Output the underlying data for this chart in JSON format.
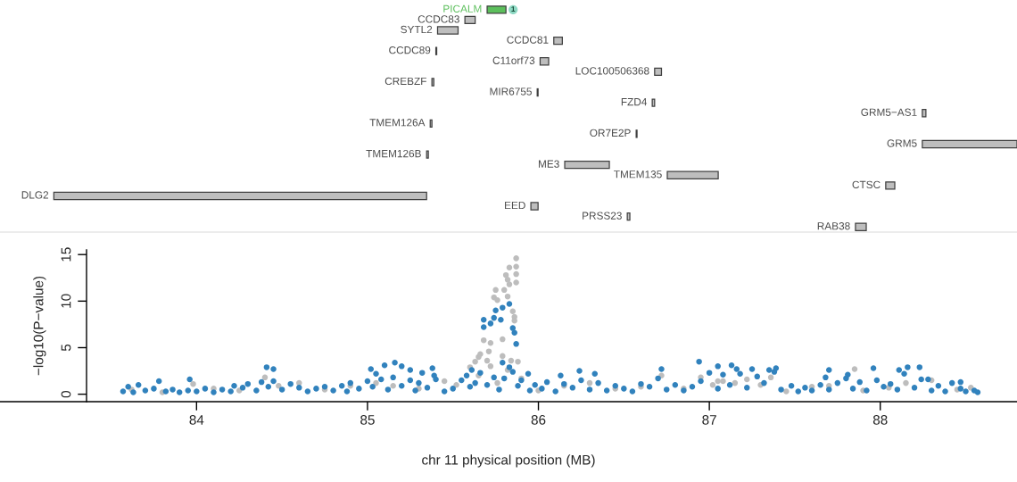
{
  "chart_data": [
    {
      "type": "bar",
      "orientation": "horizontal",
      "xlim": [
        82.85,
        88.8
      ],
      "tick_labels": false,
      "annotations": [
        "1"
      ],
      "categories": [
        "PICALM",
        "CCDC83",
        "SYTL2",
        "CCDC81",
        "CCDC89",
        "C11orf73",
        "LOC100506368",
        "CREBZF",
        "MIR6755",
        "FZD4",
        "GRM5−AS1",
        "TMEM126A",
        "OR7E2P",
        "GRM5",
        "TMEM126B",
        "ME3",
        "TMEM135",
        "CTSC",
        "DLG2",
        "EED",
        "PRSS23",
        "RAB38"
      ],
      "colors": [
        "#5cbf5c",
        "#bebebe",
        "#bebebe",
        "#bebebe",
        "#bebebe",
        "#bebebe",
        "#bebebe",
        "#bebebe",
        "#bebebe",
        "#bebebe",
        "#bebebe",
        "#bebebe",
        "#bebebe",
        "#bebebe",
        "#bebebe",
        "#bebebe",
        "#bebebe",
        "#bebebe",
        "#bebebe",
        "#bebebe",
        "#bebebe",
        "#bebebe"
      ],
      "base": [
        85.7,
        85.57,
        85.41,
        86.09,
        85.4,
        86.01,
        86.68,
        85.377,
        85.993,
        86.666,
        88.246,
        85.367,
        86.572,
        88.246,
        85.346,
        86.154,
        86.754,
        88.032,
        83.165,
        85.956,
        86.52,
        87.855
      ],
      "values": [
        0.11,
        0.06,
        0.12,
        0.05,
        0.005,
        0.05,
        0.04,
        0.011,
        0.005,
        0.014,
        0.021,
        0.01,
        0.005,
        0.554,
        0.01,
        0.261,
        0.298,
        0.053,
        2.181,
        0.042,
        0.015,
        0.063
      ]
    },
    {
      "type": "scatter",
      "xlabel": "chr 11 physical position (MB)",
      "ylabel": "−log10(P−value)",
      "xlim": [
        82.85,
        88.8
      ],
      "ylim": [
        -0.8,
        15.5
      ],
      "xticks": [
        84,
        85,
        86,
        87,
        88
      ],
      "yticks": [
        0,
        5,
        10,
        15
      ],
      "marker": "circle",
      "series": [
        {
          "color": "#bdbdbd",
          "x": [
            83.62,
            83.8,
            83.98,
            84.1,
            84.25,
            84.4,
            84.48,
            84.6,
            84.75,
            84.9,
            85.05,
            85.15,
            85.3,
            85.45,
            85.52,
            85.6,
            85.65,
            85.72,
            85.76,
            85.82,
            85.9,
            86.0,
            86.15,
            86.3,
            86.45,
            86.6,
            86.72,
            86.85,
            86.95,
            87.02,
            87.08,
            87.15,
            87.22,
            87.3,
            87.36,
            87.45,
            87.6,
            87.7,
            87.85,
            87.9,
            88.05,
            88.15,
            88.3,
            88.45,
            88.53,
            87.05,
            85.65,
            85.87,
            85.83,
            85.87,
            85.81,
            85.87,
            85.82,
            85.83,
            85.87,
            85.75,
            85.8,
            85.74,
            85.76,
            85.82,
            85.85,
            85.86,
            85.86,
            85.68,
            85.72,
            85.79,
            85.71,
            85.66,
            85.63,
            85.7,
            85.79,
            85.84,
            85.88
          ],
          "values": [
            0.5,
            0.2,
            1.1,
            0.6,
            0.4,
            1.8,
            0.9,
            1.2,
            0.5,
            0.9,
            1.2,
            0.9,
            0.6,
            1.4,
            1.0,
            2.9,
            2.0,
            3.0,
            1.2,
            2.6,
            1.7,
            0.4,
            0.9,
            1.2,
            0.6,
            0.8,
            2.0,
            0.6,
            1.8,
            1.0,
            1.4,
            1.2,
            1.6,
            1.0,
            1.8,
            0.3,
            0.8,
            0.9,
            2.7,
            0.4,
            0.7,
            1.2,
            1.5,
            0.5,
            0.7,
            1.4,
            4.0,
            14.6,
            13.6,
            13.7,
            12.8,
            12.9,
            12.3,
            11.8,
            12.0,
            11.2,
            11.2,
            10.4,
            10.1,
            10.5,
            8.9,
            8.3,
            7.9,
            5.8,
            5.5,
            5.9,
            4.6,
            4.3,
            3.5,
            3.6,
            4.1,
            3.6,
            3.5
          ]
        },
        {
          "color": "#3182bd",
          "x": [
            83.57,
            83.6,
            83.63,
            83.66,
            83.7,
            83.75,
            83.78,
            83.82,
            83.86,
            83.9,
            83.95,
            84.0,
            84.05,
            84.1,
            84.15,
            84.2,
            84.22,
            84.27,
            84.3,
            84.35,
            84.38,
            84.42,
            84.45,
            84.5,
            84.55,
            84.6,
            84.65,
            84.7,
            84.75,
            84.8,
            84.85,
            84.88,
            84.9,
            84.95,
            85.0,
            85.03,
            85.08,
            85.12,
            85.15,
            85.2,
            85.25,
            85.28,
            85.3,
            85.35,
            85.4,
            85.45,
            85.5,
            85.55,
            85.58,
            85.6,
            85.63,
            85.66,
            85.7,
            85.74,
            85.77,
            85.8,
            85.85,
            85.88,
            85.9,
            85.95,
            85.98,
            86.02,
            86.05,
            86.1,
            86.15,
            86.2,
            86.25,
            86.3,
            86.35,
            86.4,
            86.45,
            86.5,
            86.55,
            86.6,
            86.65,
            86.7,
            86.75,
            86.8,
            86.85,
            86.9,
            86.95,
            87.0,
            87.05,
            87.08,
            87.12,
            87.18,
            87.22,
            87.28,
            87.32,
            87.38,
            87.42,
            87.48,
            87.52,
            87.56,
            87.6,
            87.65,
            87.68,
            87.7,
            87.75,
            87.8,
            87.84,
            87.88,
            87.92,
            87.98,
            88.02,
            88.06,
            88.1,
            88.14,
            88.2,
            88.24,
            88.3,
            88.34,
            88.38,
            88.42,
            88.47,
            88.5,
            88.55,
            88.57,
            84.41,
            84.45,
            83.96,
            85.16,
            85.02,
            85.1,
            85.2,
            85.38,
            85.05,
            85.25,
            85.32,
            85.39,
            85.79,
            85.83,
            85.61,
            85.94,
            86.94,
            87.05,
            87.13,
            87.16,
            87.25,
            87.39,
            87.35,
            86.24,
            86.33,
            86.13,
            86.72,
            87.7,
            87.96,
            88.11,
            88.16,
            88.23,
            88.28,
            88.47,
            87.81,
            85.68,
            85.68,
            85.72,
            85.75,
            85.79,
            85.83,
            85.78,
            85.85,
            85.86,
            85.87,
            85.74
          ],
          "values": [
            0.3,
            0.8,
            0.2,
            1.0,
            0.4,
            0.6,
            1.4,
            0.3,
            0.5,
            0.2,
            0.4,
            0.3,
            0.6,
            0.2,
            0.5,
            0.3,
            0.9,
            0.7,
            1.1,
            0.4,
            1.3,
            0.8,
            1.4,
            0.5,
            1.1,
            0.7,
            0.3,
            0.6,
            0.8,
            0.4,
            0.9,
            0.3,
            1.2,
            0.6,
            1.4,
            0.8,
            1.6,
            0.5,
            1.8,
            0.9,
            1.5,
            0.4,
            1.2,
            0.7,
            1.6,
            0.3,
            0.6,
            1.5,
            2.0,
            0.8,
            1.2,
            2.3,
            1.0,
            1.8,
            0.5,
            1.7,
            2.4,
            0.9,
            1.5,
            0.4,
            1.0,
            0.6,
            1.3,
            0.3,
            1.1,
            0.7,
            1.5,
            0.5,
            1.2,
            0.4,
            0.9,
            0.6,
            0.3,
            1.1,
            0.8,
            1.7,
            0.5,
            1.0,
            0.4,
            0.8,
            1.4,
            2.3,
            0.6,
            2.1,
            1.0,
            2.2,
            0.7,
            1.9,
            1.2,
            2.4,
            0.5,
            0.9,
            0.3,
            0.7,
            0.4,
            1.0,
            1.8,
            0.5,
            1.2,
            1.7,
            0.6,
            1.3,
            0.4,
            1.5,
            0.8,
            1.1,
            0.5,
            2.2,
            0.7,
            1.6,
            0.4,
            0.9,
            0.3,
            1.2,
            0.6,
            0.3,
            0.4,
            0.2,
            2.9,
            2.7,
            1.6,
            3.4,
            2.7,
            3.1,
            3.0,
            2.8,
            2.2,
            2.6,
            2.3,
            2.0,
            3.4,
            2.9,
            2.6,
            2.2,
            3.5,
            3.0,
            3.1,
            2.7,
            2.7,
            2.8,
            2.6,
            2.5,
            2.2,
            2.0,
            2.7,
            2.6,
            2.8,
            2.6,
            2.9,
            2.9,
            1.6,
            1.3,
            2.1,
            8.0,
            7.2,
            7.6,
            9.0,
            9.3,
            9.7,
            8.0,
            7.1,
            6.6,
            5.4,
            8.2
          ]
        }
      ]
    }
  ]
}
